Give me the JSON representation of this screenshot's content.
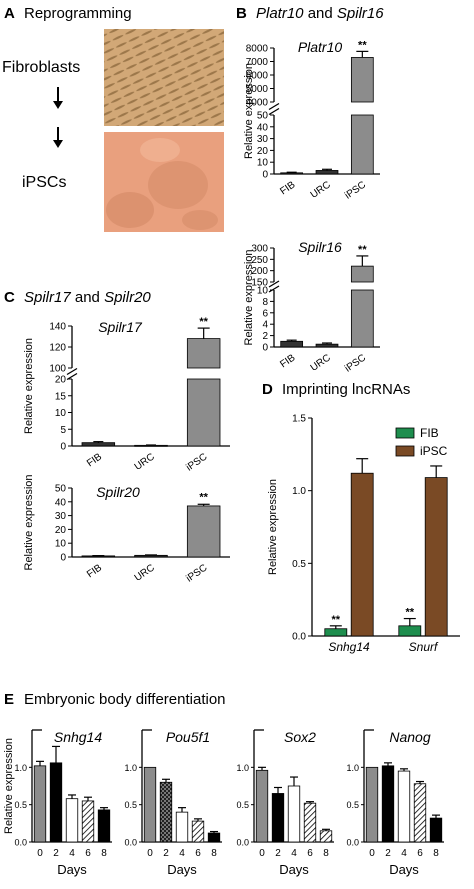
{
  "panels": {
    "A": {
      "letter": "A",
      "title": "Reprogramming",
      "labels": [
        "Fibroblasts",
        "iPSCs"
      ]
    },
    "B": {
      "letter": "B",
      "title_part1": "Platr10",
      "title_and": " and ",
      "title_part2": "Spilr16"
    },
    "C": {
      "letter": "C",
      "title_part1": "Spilr17",
      "title_and": " and ",
      "title_part2": "Spilr20"
    },
    "D": {
      "letter": "D",
      "title": "Imprinting lncRNAs"
    },
    "E": {
      "letter": "E",
      "title": "Embryonic body differentiation"
    }
  },
  "colors": {
    "fib_green": "#1e8e4e",
    "ipsc_brown": "#7a4a25",
    "bar_gray": "#8c8c8c",
    "bar_black": "#000000",
    "fibroblast_photo": "#d2a877",
    "ipsc_photo": "#e9a07e"
  },
  "chart_data": [
    {
      "id": "platr10",
      "type": "bar",
      "title": "Platr10",
      "ylabel": "Relative expression",
      "categories": [
        "FIB",
        "URC",
        "iPSC"
      ],
      "values": [
        1,
        3,
        7300
      ],
      "errors": [
        0.5,
        1,
        450
      ],
      "significance": [
        "",
        "",
        "**"
      ],
      "axis_break": {
        "lower": [
          0,
          50
        ],
        "upper": [
          4000,
          8000
        ]
      },
      "lower_ticks": [
        0,
        10,
        20,
        30,
        40,
        50
      ],
      "upper_ticks": [
        4000,
        5000,
        6000,
        7000,
        8000
      ]
    },
    {
      "id": "spilr16",
      "type": "bar",
      "title": "Spilr16",
      "ylabel": "Relative expression",
      "categories": [
        "FIB",
        "URC",
        "iPSC"
      ],
      "values": [
        1,
        0.5,
        220
      ],
      "errors": [
        0.2,
        0.2,
        45
      ],
      "significance": [
        "",
        "",
        "**"
      ],
      "axis_break": {
        "lower": [
          0,
          10
        ],
        "upper": [
          150,
          300
        ]
      },
      "lower_ticks": [
        0,
        2,
        4,
        6,
        8,
        10
      ],
      "upper_ticks": [
        150,
        200,
        250,
        300
      ]
    },
    {
      "id": "spilr17",
      "type": "bar",
      "title": "Spilr17",
      "ylabel": "Relative expression",
      "categories": [
        "FIB",
        "URC",
        "iPSC"
      ],
      "values": [
        1,
        0.2,
        128
      ],
      "errors": [
        0.3,
        0.1,
        10
      ],
      "significance": [
        "",
        "",
        "**"
      ],
      "axis_break": {
        "lower": [
          0,
          20
        ],
        "upper": [
          100,
          140
        ]
      },
      "lower_ticks": [
        0,
        5,
        10,
        15,
        20
      ],
      "upper_ticks": [
        100,
        120,
        140
      ]
    },
    {
      "id": "spilr20",
      "type": "bar",
      "title": "Spilr20",
      "ylabel": "Relative expression",
      "categories": [
        "FIB",
        "URC",
        "iPSC"
      ],
      "values": [
        0.8,
        1.2,
        37
      ],
      "errors": [
        0.2,
        0.3,
        1.2
      ],
      "significance": [
        "",
        "",
        "**"
      ],
      "ylim": [
        0,
        50
      ],
      "yticks": [
        0,
        10,
        20,
        30,
        40,
        50
      ]
    },
    {
      "id": "imprinting",
      "type": "bar",
      "ylabel": "Relative expression",
      "categories": [
        "Snhg14",
        "Snurf"
      ],
      "series": [
        {
          "name": "FIB",
          "values": [
            0.05,
            0.07
          ],
          "errors": [
            0.02,
            0.05
          ],
          "significance": [
            "**",
            "**"
          ]
        },
        {
          "name": "iPSC",
          "values": [
            1.12,
            1.09
          ],
          "errors": [
            0.1,
            0.08
          ],
          "significance": [
            "",
            ""
          ]
        }
      ],
      "ylim": [
        0,
        1.5
      ],
      "yticks": [
        0.0,
        0.5,
        1.0,
        1.5
      ],
      "ytick_labels": [
        "0.0",
        "0.5",
        "1.0",
        "1.5"
      ],
      "legend_position": "top-right"
    },
    {
      "id": "snhg14",
      "type": "bar",
      "title": "Snhg14",
      "ylabel": "Relative expression",
      "xlabel": "Days",
      "categories": [
        "0",
        "2",
        "4",
        "6",
        "8"
      ],
      "values": [
        1.02,
        1.06,
        0.58,
        0.55,
        0.43
      ],
      "errors": [
        0.06,
        0.22,
        0.05,
        0.05,
        0.03
      ],
      "fills": [
        "gray",
        "black",
        "white",
        "hatch",
        "black"
      ],
      "ylim": [
        0,
        1.5
      ],
      "yticks": [
        0.0,
        0.5,
        1.0
      ],
      "ytick_labels": [
        "0.0",
        "0.5",
        "1.0"
      ]
    },
    {
      "id": "pou5f1",
      "type": "bar",
      "title": "Pou5f1",
      "xlabel": "Days",
      "categories": [
        "0",
        "2",
        "4",
        "6",
        "8"
      ],
      "values": [
        1.0,
        0.8,
        0.4,
        0.28,
        0.12
      ],
      "errors": [
        0.0,
        0.04,
        0.06,
        0.03,
        0.02
      ],
      "fills": [
        "gray",
        "checker",
        "white",
        "hatch",
        "black"
      ],
      "ylim": [
        0,
        1.5
      ],
      "yticks": [
        0.0,
        0.5,
        1.0
      ],
      "ytick_labels": [
        "0.0",
        "0.5",
        "1.0"
      ]
    },
    {
      "id": "sox2",
      "type": "bar",
      "title": "Sox2",
      "xlabel": "Days",
      "categories": [
        "0",
        "2",
        "4",
        "6",
        "8"
      ],
      "values": [
        0.96,
        0.65,
        0.75,
        0.52,
        0.15
      ],
      "errors": [
        0.04,
        0.08,
        0.12,
        0.02,
        0.02
      ],
      "fills": [
        "gray",
        "black",
        "white",
        "hatch",
        "hatch"
      ],
      "ylim": [
        0,
        1.5
      ],
      "yticks": [
        0.0,
        0.5,
        1.0
      ],
      "ytick_labels": [
        "0.0",
        "0.5",
        "1.0"
      ]
    },
    {
      "id": "nanog",
      "type": "bar",
      "title": "Nanog",
      "xlabel": "Days",
      "categories": [
        "0",
        "2",
        "4",
        "6",
        "8"
      ],
      "values": [
        1.0,
        1.02,
        0.95,
        0.78,
        0.32
      ],
      "errors": [
        0.0,
        0.04,
        0.03,
        0.03,
        0.04
      ],
      "fills": [
        "gray",
        "black",
        "white",
        "hatch",
        "black"
      ],
      "ylim": [
        0,
        1.5
      ],
      "yticks": [
        0.0,
        0.5,
        1.0
      ],
      "ytick_labels": [
        "0.0",
        "0.5",
        "1.0"
      ]
    }
  ]
}
